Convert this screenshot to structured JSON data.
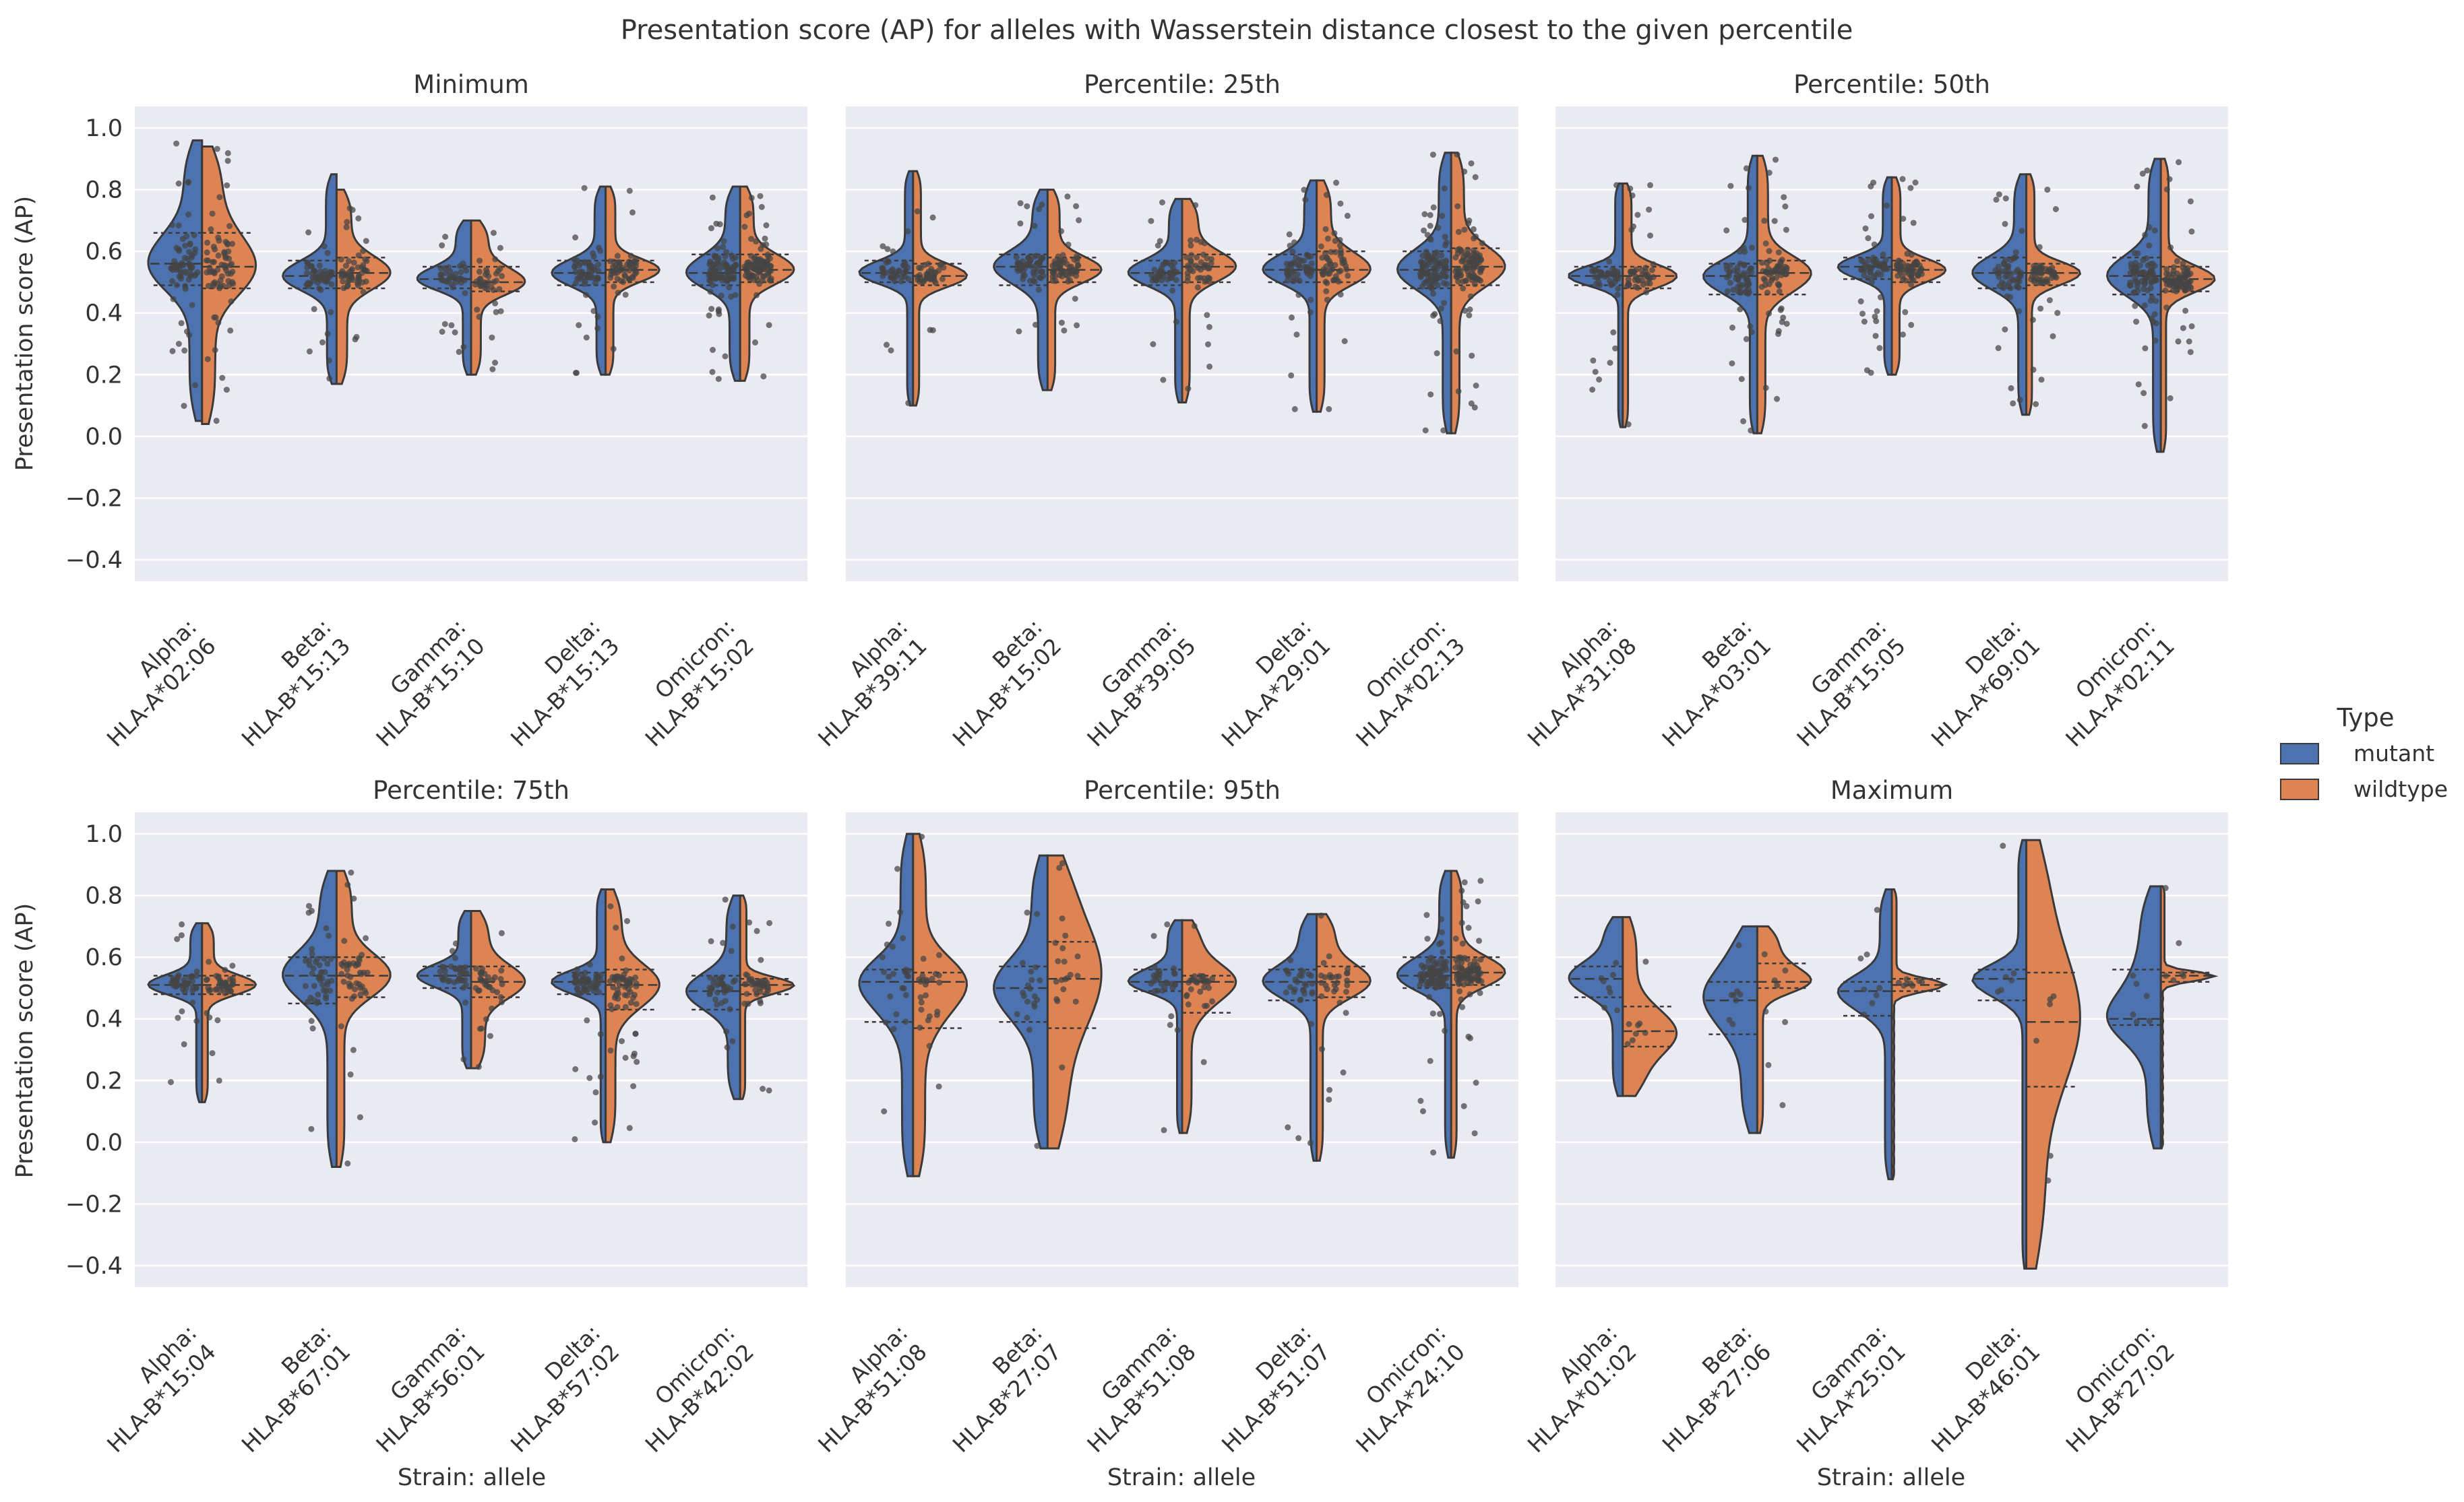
{
  "title": "Presentation score (AP) for alleles with Wasserstein distance closest to the given percentile",
  "ylabel": "Presentation score (AP)",
  "xlabel": "Strain: allele",
  "y_ticks": [
    1.0,
    0.8,
    0.6,
    0.4,
    0.2,
    0.0,
    -0.2,
    -0.4
  ],
  "y_tick_labels": [
    "1.0",
    "0.8",
    "0.6",
    "0.4",
    "0.2",
    "0.0",
    "−0.2",
    "−0.4"
  ],
  "legend": {
    "title": "Type",
    "items": [
      {
        "label": "mutant",
        "color": "#4c72b0"
      },
      {
        "label": "wildtype",
        "color": "#dd8452"
      }
    ]
  },
  "colors": {
    "panel_bg": "#eaeaf2",
    "grid": "#ffffff",
    "outline": "#3a3a3a",
    "point": "#444444"
  },
  "chart_data": [
    {
      "type": "violin",
      "title": "Minimum",
      "ylim": [
        -0.47,
        1.07
      ],
      "categories": [
        {
          "strain": "Alpha:",
          "allele": "HLA-A*02:06",
          "mutant": {
            "min": 0.05,
            "q1": 0.49,
            "median": 0.56,
            "q3": 0.66,
            "max": 0.96,
            "n": 70
          },
          "wildtype": {
            "min": 0.04,
            "q1": 0.48,
            "median": 0.55,
            "q3": 0.66,
            "max": 0.94,
            "n": 70
          }
        },
        {
          "strain": "Beta:",
          "allele": "HLA-B*15:13",
          "mutant": {
            "min": 0.17,
            "q1": 0.48,
            "median": 0.52,
            "q3": 0.57,
            "max": 0.85,
            "n": 55
          },
          "wildtype": {
            "min": 0.17,
            "q1": 0.48,
            "median": 0.53,
            "q3": 0.58,
            "max": 0.8,
            "n": 55
          }
        },
        {
          "strain": "Gamma:",
          "allele": "HLA-B*15:10",
          "mutant": {
            "min": 0.2,
            "q1": 0.48,
            "median": 0.51,
            "q3": 0.55,
            "max": 0.7,
            "n": 40
          },
          "wildtype": {
            "min": 0.2,
            "q1": 0.47,
            "median": 0.5,
            "q3": 0.55,
            "max": 0.7,
            "n": 40
          }
        },
        {
          "strain": "Delta:",
          "allele": "HLA-B*15:13",
          "mutant": {
            "min": 0.2,
            "q1": 0.49,
            "median": 0.53,
            "q3": 0.57,
            "max": 0.81,
            "n": 55
          },
          "wildtype": {
            "min": 0.2,
            "q1": 0.5,
            "median": 0.54,
            "q3": 0.57,
            "max": 0.81,
            "n": 55
          }
        },
        {
          "strain": "Omicron:",
          "allele": "HLA-B*15:02",
          "mutant": {
            "min": 0.18,
            "q1": 0.49,
            "median": 0.53,
            "q3": 0.59,
            "max": 0.81,
            "n": 90
          },
          "wildtype": {
            "min": 0.18,
            "q1": 0.5,
            "median": 0.54,
            "q3": 0.59,
            "max": 0.81,
            "n": 90
          }
        }
      ]
    },
    {
      "type": "violin",
      "title": "Percentile: 25th",
      "ylim": [
        -0.47,
        1.07
      ],
      "categories": [
        {
          "strain": "Alpha:",
          "allele": "HLA-B*39:11",
          "mutant": {
            "min": 0.1,
            "q1": 0.5,
            "median": 0.53,
            "q3": 0.57,
            "max": 0.86,
            "n": 40
          },
          "wildtype": {
            "min": 0.1,
            "q1": 0.49,
            "median": 0.52,
            "q3": 0.56,
            "max": 0.86,
            "n": 40
          }
        },
        {
          "strain": "Beta:",
          "allele": "HLA-B*15:02",
          "mutant": {
            "min": 0.15,
            "q1": 0.49,
            "median": 0.55,
            "q3": 0.59,
            "max": 0.8,
            "n": 60
          },
          "wildtype": {
            "min": 0.15,
            "q1": 0.5,
            "median": 0.54,
            "q3": 0.58,
            "max": 0.8,
            "n": 60
          }
        },
        {
          "strain": "Gamma:",
          "allele": "HLA-B*39:05",
          "mutant": {
            "min": 0.11,
            "q1": 0.49,
            "median": 0.53,
            "q3": 0.57,
            "max": 0.77,
            "n": 45
          },
          "wildtype": {
            "min": 0.11,
            "q1": 0.5,
            "median": 0.55,
            "q3": 0.59,
            "max": 0.77,
            "n": 45
          }
        },
        {
          "strain": "Delta:",
          "allele": "HLA-A*29:01",
          "mutant": {
            "min": 0.08,
            "q1": 0.5,
            "median": 0.54,
            "q3": 0.59,
            "max": 0.83,
            "n": 55
          },
          "wildtype": {
            "min": 0.08,
            "q1": 0.5,
            "median": 0.54,
            "q3": 0.6,
            "max": 0.83,
            "n": 55
          }
        },
        {
          "strain": "Omicron:",
          "allele": "HLA-A*02:13",
          "mutant": {
            "min": 0.01,
            "q1": 0.48,
            "median": 0.54,
            "q3": 0.6,
            "max": 0.92,
            "n": 100
          },
          "wildtype": {
            "min": 0.01,
            "q1": 0.49,
            "median": 0.55,
            "q3": 0.61,
            "max": 0.92,
            "n": 100
          }
        }
      ]
    },
    {
      "type": "violin",
      "title": "Percentile: 50th",
      "ylim": [
        -0.47,
        1.07
      ],
      "categories": [
        {
          "strain": "Alpha:",
          "allele": "HLA-A*31:08",
          "mutant": {
            "min": 0.03,
            "q1": 0.49,
            "median": 0.52,
            "q3": 0.55,
            "max": 0.82,
            "n": 45
          },
          "wildtype": {
            "min": 0.03,
            "q1": 0.48,
            "median": 0.52,
            "q3": 0.55,
            "max": 0.82,
            "n": 45
          }
        },
        {
          "strain": "Beta:",
          "allele": "HLA-A*03:01",
          "mutant": {
            "min": 0.01,
            "q1": 0.46,
            "median": 0.52,
            "q3": 0.56,
            "max": 0.91,
            "n": 65
          },
          "wildtype": {
            "min": 0.01,
            "q1": 0.46,
            "median": 0.53,
            "q3": 0.57,
            "max": 0.91,
            "n": 65
          }
        },
        {
          "strain": "Gamma:",
          "allele": "HLA-B*15:05",
          "mutant": {
            "min": 0.2,
            "q1": 0.51,
            "median": 0.55,
            "q3": 0.58,
            "max": 0.84,
            "n": 60
          },
          "wildtype": {
            "min": 0.2,
            "q1": 0.5,
            "median": 0.54,
            "q3": 0.57,
            "max": 0.84,
            "n": 60
          }
        },
        {
          "strain": "Delta:",
          "allele": "HLA-A*69:01",
          "mutant": {
            "min": 0.07,
            "q1": 0.48,
            "median": 0.53,
            "q3": 0.58,
            "max": 0.85,
            "n": 55
          },
          "wildtype": {
            "min": 0.07,
            "q1": 0.49,
            "median": 0.53,
            "q3": 0.56,
            "max": 0.85,
            "n": 55
          }
        },
        {
          "strain": "Omicron:",
          "allele": "HLA-A*02:11",
          "mutant": {
            "min": -0.05,
            "q1": 0.46,
            "median": 0.52,
            "q3": 0.58,
            "max": 0.9,
            "n": 85
          },
          "wildtype": {
            "min": -0.05,
            "q1": 0.47,
            "median": 0.51,
            "q3": 0.55,
            "max": 0.9,
            "n": 85
          }
        }
      ]
    },
    {
      "type": "violin",
      "title": "Percentile: 75th",
      "ylim": [
        -0.47,
        1.07
      ],
      "categories": [
        {
          "strain": "Alpha:",
          "allele": "HLA-B*15:04",
          "mutant": {
            "min": 0.13,
            "q1": 0.48,
            "median": 0.51,
            "q3": 0.54,
            "max": 0.71,
            "n": 40
          },
          "wildtype": {
            "min": 0.13,
            "q1": 0.48,
            "median": 0.51,
            "q3": 0.54,
            "max": 0.71,
            "n": 40
          }
        },
        {
          "strain": "Beta:",
          "allele": "HLA-B*67:01",
          "mutant": {
            "min": -0.08,
            "q1": 0.45,
            "median": 0.54,
            "q3": 0.6,
            "max": 0.88,
            "n": 45
          },
          "wildtype": {
            "min": -0.08,
            "q1": 0.47,
            "median": 0.54,
            "q3": 0.6,
            "max": 0.88,
            "n": 45
          }
        },
        {
          "strain": "Gamma:",
          "allele": "HLA-B*56:01",
          "mutant": {
            "min": 0.24,
            "q1": 0.5,
            "median": 0.54,
            "q3": 0.57,
            "max": 0.75,
            "n": 35
          },
          "wildtype": {
            "min": 0.24,
            "q1": 0.47,
            "median": 0.52,
            "q3": 0.57,
            "max": 0.75,
            "n": 35
          }
        },
        {
          "strain": "Delta:",
          "allele": "HLA-B*57:02",
          "mutant": {
            "min": 0.0,
            "q1": 0.48,
            "median": 0.52,
            "q3": 0.55,
            "max": 0.82,
            "n": 60
          },
          "wildtype": {
            "min": 0.0,
            "q1": 0.43,
            "median": 0.51,
            "q3": 0.56,
            "max": 0.82,
            "n": 60
          }
        },
        {
          "strain": "Omicron:",
          "allele": "HLA-B*42:02",
          "mutant": {
            "min": 0.14,
            "q1": 0.43,
            "median": 0.49,
            "q3": 0.54,
            "max": 0.8,
            "n": 40
          },
          "wildtype": {
            "min": 0.14,
            "q1": 0.48,
            "median": 0.51,
            "q3": 0.53,
            "max": 0.8,
            "n": 40
          }
        }
      ]
    },
    {
      "type": "violin",
      "title": "Percentile: 95th",
      "ylim": [
        -0.47,
        1.07
      ],
      "categories": [
        {
          "strain": "Alpha:",
          "allele": "HLA-B*51:08",
          "mutant": {
            "min": -0.11,
            "q1": 0.39,
            "median": 0.52,
            "q3": 0.56,
            "max": 1.0,
            "n": 25
          },
          "wildtype": {
            "min": -0.11,
            "q1": 0.37,
            "median": 0.52,
            "q3": 0.55,
            "max": 1.0,
            "n": 25
          }
        },
        {
          "strain": "Beta:",
          "allele": "HLA-B*27:07",
          "mutant": {
            "min": -0.02,
            "q1": 0.39,
            "median": 0.5,
            "q3": 0.57,
            "max": 0.93,
            "n": 20
          },
          "wildtype": {
            "min": -0.02,
            "q1": 0.37,
            "median": 0.53,
            "q3": 0.65,
            "max": 0.93,
            "n": 20
          }
        },
        {
          "strain": "Gamma:",
          "allele": "HLA-B*51:08",
          "mutant": {
            "min": 0.03,
            "q1": 0.49,
            "median": 0.52,
            "q3": 0.56,
            "max": 0.72,
            "n": 30
          },
          "wildtype": {
            "min": 0.03,
            "q1": 0.42,
            "median": 0.52,
            "q3": 0.54,
            "max": 0.72,
            "n": 30
          }
        },
        {
          "strain": "Delta:",
          "allele": "HLA-B*51:07",
          "mutant": {
            "min": -0.06,
            "q1": 0.46,
            "median": 0.52,
            "q3": 0.56,
            "max": 0.74,
            "n": 30
          },
          "wildtype": {
            "min": -0.06,
            "q1": 0.47,
            "median": 0.52,
            "q3": 0.57,
            "max": 0.74,
            "n": 30
          }
        },
        {
          "strain": "Omicron:",
          "allele": "HLA-A*24:10",
          "mutant": {
            "min": -0.05,
            "q1": 0.5,
            "median": 0.54,
            "q3": 0.6,
            "max": 0.88,
            "n": 90
          },
          "wildtype": {
            "min": -0.05,
            "q1": 0.51,
            "median": 0.55,
            "q3": 0.6,
            "max": 0.88,
            "n": 90
          }
        }
      ]
    },
    {
      "type": "violin",
      "title": "Maximum",
      "ylim": [
        -0.47,
        1.07
      ],
      "categories": [
        {
          "strain": "Alpha:",
          "allele": "HLA-A*01:02",
          "mutant": {
            "min": 0.15,
            "q1": 0.47,
            "median": 0.53,
            "q3": 0.57,
            "max": 0.73,
            "n": 8
          },
          "wildtype": {
            "min": 0.15,
            "q1": 0.31,
            "median": 0.36,
            "q3": 0.44,
            "max": 0.73,
            "n": 8
          }
        },
        {
          "strain": "Beta:",
          "allele": "HLA-B*27:06",
          "mutant": {
            "min": 0.03,
            "q1": 0.35,
            "median": 0.46,
            "q3": 0.52,
            "max": 0.7,
            "n": 8
          },
          "wildtype": {
            "min": 0.03,
            "q1": 0.5,
            "median": 0.52,
            "q3": 0.58,
            "max": 0.7,
            "n": 8
          }
        },
        {
          "strain": "Gamma:",
          "allele": "HLA-A*25:01",
          "mutant": {
            "min": -0.12,
            "q1": 0.41,
            "median": 0.49,
            "q3": 0.52,
            "max": 0.82,
            "n": 8
          },
          "wildtype": {
            "min": -0.12,
            "q1": 0.49,
            "median": 0.51,
            "q3": 0.53,
            "max": 0.82,
            "n": 8
          }
        },
        {
          "strain": "Delta:",
          "allele": "HLA-B*46:01",
          "mutant": {
            "min": -0.41,
            "q1": 0.46,
            "median": 0.53,
            "q3": 0.56,
            "max": 0.98,
            "n": 6
          },
          "wildtype": {
            "min": -0.41,
            "q1": 0.18,
            "median": 0.39,
            "q3": 0.55,
            "max": 0.98,
            "n": 6
          }
        },
        {
          "strain": "Omicron:",
          "allele": "HLA-B*27:02",
          "mutant": {
            "min": -0.02,
            "q1": 0.38,
            "median": 0.4,
            "q3": 0.56,
            "max": 0.83,
            "n": 6
          },
          "wildtype": {
            "min": -0.02,
            "q1": 0.52,
            "median": 0.54,
            "q3": 0.55,
            "max": 0.83,
            "n": 6
          }
        }
      ]
    }
  ]
}
